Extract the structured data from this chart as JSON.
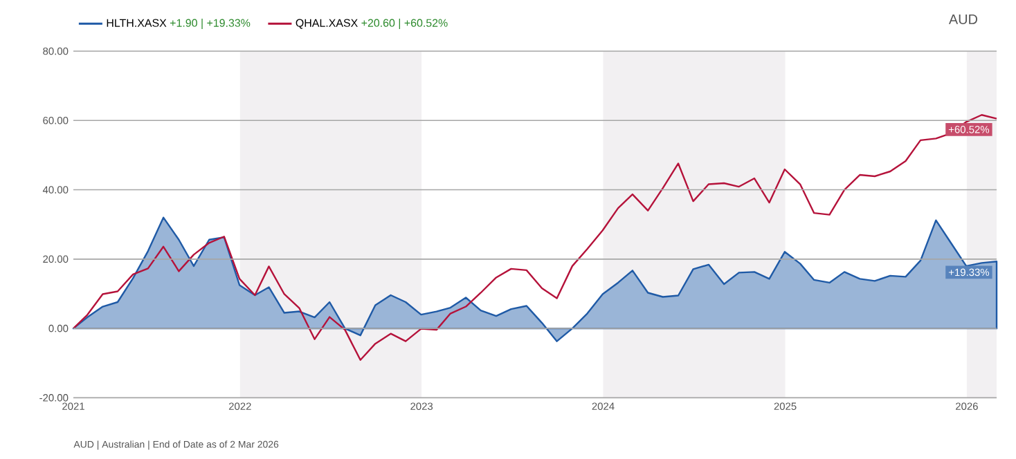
{
  "chart_data": {
    "type": "area",
    "x": [
      "2021-01-31",
      "2021-02-28",
      "2021-03-31",
      "2021-04-30",
      "2021-05-31",
      "2021-06-30",
      "2021-07-31",
      "2021-08-31",
      "2021-09-30",
      "2021-10-31",
      "2021-11-30",
      "2021-12-31",
      "2022-01-31",
      "2022-02-28",
      "2022-03-31",
      "2022-04-30",
      "2022-05-31",
      "2022-06-30",
      "2022-07-31",
      "2022-08-31",
      "2022-09-30",
      "2022-10-31",
      "2022-11-30",
      "2022-12-31",
      "2023-01-31",
      "2023-02-28",
      "2023-03-31",
      "2023-04-30",
      "2023-05-31",
      "2023-06-30",
      "2023-07-31",
      "2023-08-31",
      "2023-09-30",
      "2023-10-31",
      "2023-11-30",
      "2023-12-31",
      "2024-01-31",
      "2024-02-29",
      "2024-03-31",
      "2024-04-30",
      "2024-05-31",
      "2024-06-30",
      "2024-07-31",
      "2024-08-31",
      "2024-09-30",
      "2024-10-31",
      "2024-11-30",
      "2024-12-31",
      "2025-01-31",
      "2025-02-28",
      "2025-03-31",
      "2025-04-30",
      "2025-05-31",
      "2025-06-30",
      "2025-07-31",
      "2025-08-31",
      "2025-09-30",
      "2025-10-31",
      "2025-11-30",
      "2025-12-31",
      "2026-01-31",
      "2026-03-02"
    ],
    "series": [
      {
        "name": "HLTH.XASX",
        "color": "#1f5aa6",
        "values": [
          0,
          3.2,
          6.3,
          7.6,
          14.5,
          22.3,
          32,
          25.6,
          18,
          25.6,
          26.3,
          12.5,
          9.6,
          11.9,
          4.5,
          4.9,
          3.2,
          7.6,
          0,
          -2,
          6.7,
          9.6,
          7.6,
          4,
          4.9,
          6,
          8.9,
          5.2,
          3.6,
          5.6,
          6.5,
          1.6,
          -3.7,
          0,
          4.3,
          9.9,
          13.2,
          16.7,
          10.3,
          9.1,
          9.5,
          17.1,
          18.4,
          12.8,
          16.1,
          16.3,
          14.3,
          22.1,
          18.7,
          14,
          13.2,
          16.3,
          14.3,
          13.7,
          15.2,
          14.9,
          19.6,
          31.2,
          24.7,
          18,
          18.9,
          19.33
        ]
      },
      {
        "name": "QHAL.XASX",
        "type": "line",
        "color": "#b5123a",
        "values": [
          0,
          3.9,
          9.9,
          10.7,
          15.6,
          17.3,
          23.6,
          16.5,
          21.3,
          24.7,
          26.5,
          14.3,
          9.6,
          17.9,
          9.9,
          5.9,
          -3.1,
          3.3,
          -0.4,
          -9.1,
          -4.4,
          -1.5,
          -3.7,
          -0.1,
          -0.4,
          4.3,
          6.3,
          10.3,
          14.7,
          17.2,
          16.8,
          11.6,
          8.7,
          18,
          22.9,
          28.3,
          34.7,
          38.7,
          34,
          40.5,
          47.6,
          36.7,
          41.6,
          41.9,
          40.9,
          43.3,
          36.3,
          45.9,
          41.6,
          33.3,
          32.8,
          40,
          44.3,
          43.9,
          45.3,
          48.3,
          54.3,
          54.8,
          56.3,
          59.6,
          61.6,
          60.52
        ]
      }
    ],
    "xlim": [
      "2021-01-31",
      "2026-03-02"
    ],
    "xticks": [
      {
        "value": "2021-01-31",
        "label": "2021"
      },
      {
        "value": "2022-01-01",
        "label": "2022"
      },
      {
        "value": "2023-01-01",
        "label": "2023"
      },
      {
        "value": "2024-01-01",
        "label": "2024"
      },
      {
        "value": "2025-01-01",
        "label": "2025"
      },
      {
        "value": "2026-01-01",
        "label": "2026"
      }
    ],
    "ylim": [
      -20,
      80
    ],
    "yticks": [
      {
        "value": -20,
        "label": "-20.00"
      },
      {
        "value": 0,
        "label": "0.00"
      },
      {
        "value": 20,
        "label": "20.00"
      },
      {
        "value": 40,
        "label": "40.00"
      },
      {
        "value": 60,
        "label": "60.00"
      },
      {
        "value": 80,
        "label": "80.00"
      }
    ],
    "bands": [
      {
        "axis": "x",
        "from": "2022-01-01",
        "to": "2023-01-01",
        "label": null,
        "color": "#f2f0f2"
      },
      {
        "axis": "x",
        "from": "2024-01-01",
        "to": "2025-01-01",
        "label": null,
        "color": "#f2f0f2"
      },
      {
        "axis": "x",
        "from": "2026-01-01",
        "to": "2026-03-02",
        "label": null,
        "color": "#f2f0f2"
      }
    ],
    "annotations": [
      "+1.90 | +19.33%",
      "+20.60 | +60.52%",
      "AUD",
      "AUD | Australian | End of Date as of 2 Mar 2026",
      {
        "text": "+19.33%",
        "x": "2026-03-02",
        "y": 19.33
      },
      {
        "text": "+60.52%",
        "x": "2026-03-02",
        "y": 60.52
      }
    ],
    "grid": "y",
    "legend": "top left",
    "marker": "none"
  }
}
